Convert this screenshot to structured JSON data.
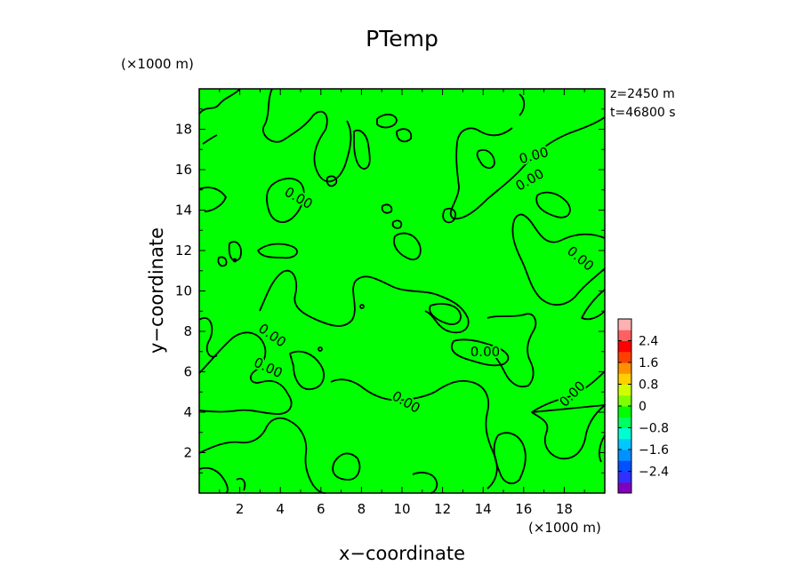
{
  "chart_data": {
    "type": "heatmap",
    "title": "PTemp",
    "xlabel": "x−coordinate",
    "ylabel": "y−coordinate",
    "x_unit": "(×1000 m)",
    "y_unit": "(×1000 m)",
    "xlim": [
      0,
      20
    ],
    "ylim": [
      0,
      20
    ],
    "x_ticks": [
      2,
      4,
      6,
      8,
      10,
      12,
      14,
      16,
      18
    ],
    "y_ticks": [
      2,
      4,
      6,
      8,
      10,
      12,
      14,
      16,
      18
    ],
    "x_tick_labels": [
      "2",
      "4",
      "6",
      "8",
      "10",
      "12",
      "14",
      "16",
      "18"
    ],
    "y_tick_labels": [
      "2",
      "4",
      "6",
      "8",
      "10",
      "12",
      "14",
      "16",
      "18"
    ],
    "annotations": [
      "z=2450 m",
      "t=46800 s"
    ],
    "field_value": 0.0,
    "field_color": "#00ff00",
    "contour_level": 0.0,
    "contour_labels": [
      {
        "text": "0.00",
        "x": 16.5,
        "y": 16.7,
        "angle": -15
      },
      {
        "text": "0.00",
        "x": 16.3,
        "y": 15.5,
        "angle": -30
      },
      {
        "text": "0.00",
        "x": 4.9,
        "y": 14.6,
        "angle": 30
      },
      {
        "text": "0.00",
        "x": 18.8,
        "y": 11.6,
        "angle": 40
      },
      {
        "text": "0.00",
        "x": 3.6,
        "y": 7.8,
        "angle": 35
      },
      {
        "text": "0.00",
        "x": 3.4,
        "y": 6.2,
        "angle": 25
      },
      {
        "text": "0.00",
        "x": 14.1,
        "y": 7.0,
        "angle": 0
      },
      {
        "text": "0.00",
        "x": 10.2,
        "y": 4.5,
        "angle": 30
      },
      {
        "text": "0.00",
        "x": 18.4,
        "y": 4.9,
        "angle": -45
      }
    ],
    "colorbar": {
      "tick_labels": [
        "2.4",
        "1.6",
        "0.8",
        "0",
        "−0.8",
        "−1.6",
        "−2.4"
      ],
      "tick_values": [
        2.4,
        1.6,
        0.8,
        0,
        -0.8,
        -1.6,
        -2.4
      ],
      "range": [
        -3.2,
        3.2
      ],
      "colors": [
        "#8000c0",
        "#3030ff",
        "#0050ff",
        "#0090ff",
        "#00c8ff",
        "#00ffd0",
        "#00ff60",
        "#00ff00",
        "#80ff00",
        "#d0ff00",
        "#ffd000",
        "#ff9000",
        "#ff4000",
        "#ff0000",
        "#ff6060",
        "#ffb0b0"
      ]
    }
  }
}
